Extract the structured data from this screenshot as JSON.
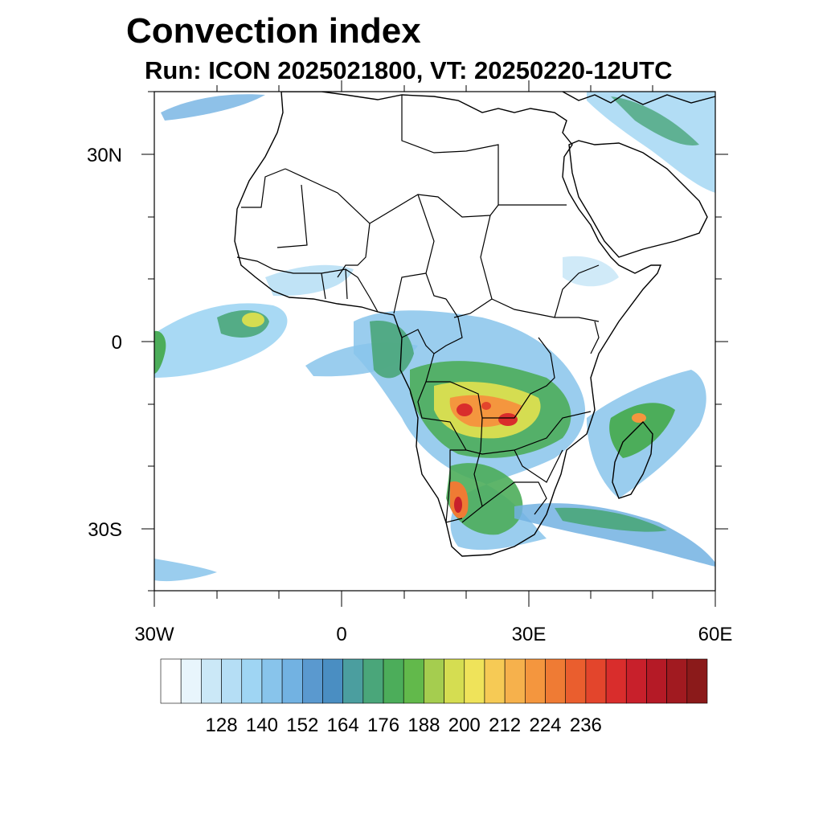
{
  "title": "Convection index",
  "subtitle": "Run: ICON 2025021800,  VT: 20250220-12UTC",
  "axes": {
    "lat_labels": [
      "30N",
      "0",
      "30S"
    ],
    "lon_labels": [
      "30W",
      "0",
      "30E",
      "60E"
    ]
  },
  "colorbar": {
    "labels": [
      "128",
      "140",
      "152",
      "164",
      "176",
      "188",
      "200",
      "212",
      "224",
      "236"
    ],
    "colors": [
      "#ffffff",
      "#e8f5fc",
      "#cbe8f7",
      "#b5def5",
      "#9fd5f3",
      "#88c4eb",
      "#72b2e2",
      "#5a99cf",
      "#4a8ec2",
      "#4b9e9f",
      "#4aa67a",
      "#4cad5a",
      "#62b94b",
      "#a5cd4f",
      "#d5dd51",
      "#efe35a",
      "#f6ca55",
      "#f6b14c",
      "#f4963e",
      "#ef7b34",
      "#ea5e2e",
      "#e3452c",
      "#d92d2c",
      "#c8202b",
      "#b51a26",
      "#a11a20",
      "#8b1a1a"
    ]
  }
}
